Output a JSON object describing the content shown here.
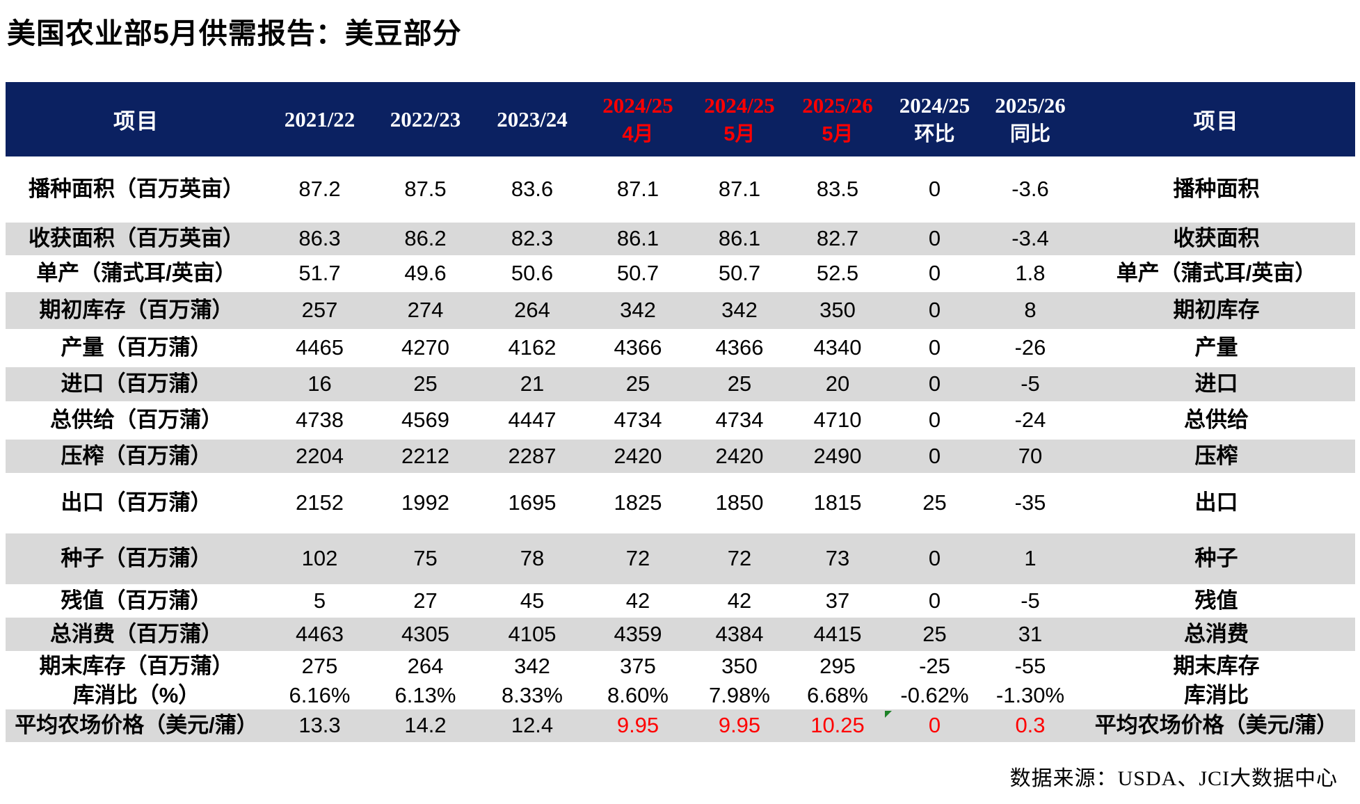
{
  "title": "美国农业部5月供需报告：美豆部分",
  "footer": {
    "source": "数据来源：USDA、JCI大数据中心"
  },
  "colors": {
    "header_bg": "#0b2161",
    "header_text": "#ffffff",
    "highlight_red": "#ff0000",
    "shaded_row_bg": "#d9d9d9",
    "flag_green": "#1e8228"
  },
  "table": {
    "header": {
      "item_left": "项目",
      "item_right": "项目",
      "cols": [
        {
          "line1": "2021/22",
          "highlight": false
        },
        {
          "line1": "2022/23",
          "highlight": false
        },
        {
          "line1": "2023/24",
          "highlight": false
        },
        {
          "line1": "2024/25",
          "line2": "4月",
          "highlight": true
        },
        {
          "line1": "2024/25",
          "line2": "5月",
          "highlight": true
        },
        {
          "line1": "2025/26",
          "line2": "5月",
          "highlight": true
        },
        {
          "line1": "2024/25",
          "line2": "环比",
          "highlight": false
        },
        {
          "line1": "2025/26",
          "line2": "同比",
          "highlight": false
        }
      ]
    },
    "rows": [
      {
        "label_left": "播种面积（百万英亩）",
        "values": [
          "87.2",
          "87.5",
          "83.6",
          "87.1",
          "87.1",
          "83.5",
          "0",
          "-3.6"
        ],
        "label_right": "播种面积",
        "shaded": false,
        "red_values": false
      },
      {
        "label_left": "收获面积（百万英亩）",
        "values": [
          "86.3",
          "86.2",
          "82.3",
          "86.1",
          "86.1",
          "82.7",
          "0",
          "-3.4"
        ],
        "label_right": "收获面积",
        "shaded": true,
        "red_values": false
      },
      {
        "label_left": "单产（蒲式耳/英亩）",
        "values": [
          "51.7",
          "49.6",
          "50.6",
          "50.7",
          "50.7",
          "52.5",
          "0",
          "1.8"
        ],
        "label_right": "单产（蒲式耳/英亩）",
        "shaded": false,
        "red_values": false
      },
      {
        "label_left": "期初库存（百万蒲）",
        "values": [
          "257",
          "274",
          "264",
          "342",
          "342",
          "350",
          "0",
          "8"
        ],
        "label_right": "期初库存",
        "shaded": true,
        "red_values": false
      },
      {
        "label_left": "产量（百万蒲）",
        "values": [
          "4465",
          "4270",
          "4162",
          "4366",
          "4366",
          "4340",
          "0",
          "-26"
        ],
        "label_right": "产量",
        "shaded": false,
        "red_values": false
      },
      {
        "label_left": "进口（百万蒲）",
        "values": [
          "16",
          "25",
          "21",
          "25",
          "25",
          "20",
          "0",
          "-5"
        ],
        "label_right": "进口",
        "shaded": true,
        "red_values": false
      },
      {
        "label_left": "总供给（百万蒲）",
        "values": [
          "4738",
          "4569",
          "4447",
          "4734",
          "4734",
          "4710",
          "0",
          "-24"
        ],
        "label_right": "总供给",
        "shaded": false,
        "red_values": false
      },
      {
        "label_left": "压榨（百万蒲）",
        "values": [
          "2204",
          "2212",
          "2287",
          "2420",
          "2420",
          "2490",
          "0",
          "70"
        ],
        "label_right": "压榨",
        "shaded": true,
        "red_values": false
      },
      {
        "label_left": "出口（百万蒲）",
        "values": [
          "2152",
          "1992",
          "1695",
          "1825",
          "1850",
          "1815",
          "25",
          "-35"
        ],
        "label_right": "出口",
        "shaded": false,
        "red_values": false
      },
      {
        "label_left": "种子（百万蒲）",
        "values": [
          "102",
          "75",
          "78",
          "72",
          "72",
          "73",
          "0",
          "1"
        ],
        "label_right": "种子",
        "shaded": true,
        "red_values": false
      },
      {
        "label_left": "残值（百万蒲）",
        "values": [
          "5",
          "27",
          "45",
          "42",
          "42",
          "37",
          "0",
          "-5"
        ],
        "label_right": "残值",
        "shaded": false,
        "red_values": false
      },
      {
        "label_left": "总消费（百万蒲）",
        "values": [
          "4463",
          "4305",
          "4105",
          "4359",
          "4384",
          "4415",
          "25",
          "31"
        ],
        "label_right": "总消费",
        "shaded": true,
        "red_values": false
      },
      {
        "label_left": "期末库存（百万蒲）",
        "values": [
          "275",
          "264",
          "342",
          "375",
          "350",
          "295",
          "-25",
          "-55"
        ],
        "label_right": "期末库存",
        "shaded": false,
        "red_values": false
      },
      {
        "label_left": "库消比（%）",
        "values": [
          "6.16%",
          "6.13%",
          "8.33%",
          "8.60%",
          "7.98%",
          "6.68%",
          "-0.62%",
          "-1.30%"
        ],
        "label_right": "库消比",
        "shaded": false,
        "red_values": false
      },
      {
        "label_left": "平均农场价格（美元/蒲）",
        "values": [
          "13.3",
          "14.2",
          "12.4",
          "9.95",
          "9.95",
          "10.25",
          "0",
          "0.3"
        ],
        "label_right": "平均农场价格（美元/蒲）",
        "shaded": true,
        "red_values": true,
        "flag_value_index": 6
      }
    ]
  }
}
